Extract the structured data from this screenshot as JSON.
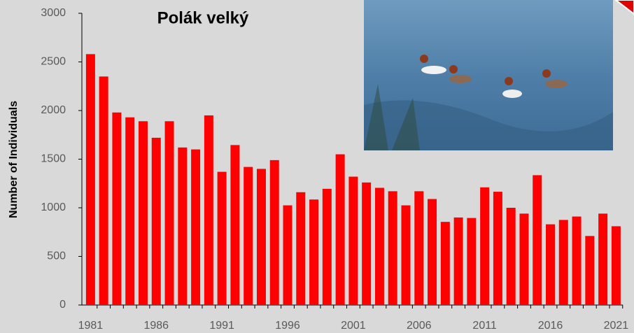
{
  "chart_data": {
    "type": "bar",
    "title": "Polák velký",
    "y_label": "Number of Individuals",
    "categories": [
      "1981",
      null,
      null,
      null,
      null,
      "1986",
      null,
      null,
      null,
      null,
      "1991",
      null,
      null,
      null,
      null,
      "1996",
      null,
      null,
      null,
      null,
      "2001",
      null,
      null,
      null,
      null,
      "2006",
      null,
      null,
      null,
      null,
      "2011",
      null,
      null,
      null,
      null,
      "2016",
      null,
      null,
      null,
      null,
      "2021"
    ],
    "values": [
      2580,
      2350,
      1980,
      1930,
      1890,
      1720,
      1890,
      1620,
      1600,
      1950,
      1370,
      1645,
      1420,
      1400,
      1490,
      1025,
      1160,
      1085,
      1195,
      1550,
      1320,
      1260,
      1205,
      1170,
      1025,
      1170,
      1090,
      855,
      900,
      895,
      1210,
      1165,
      1000,
      940,
      1335,
      830,
      875,
      910,
      710,
      940,
      810
    ],
    "color": "#ff0000",
    "ylim": [
      0,
      3000
    ],
    "yticks": [
      0,
      500,
      1000,
      1500,
      2000,
      2500,
      3000
    ],
    "grid": false
  }
}
